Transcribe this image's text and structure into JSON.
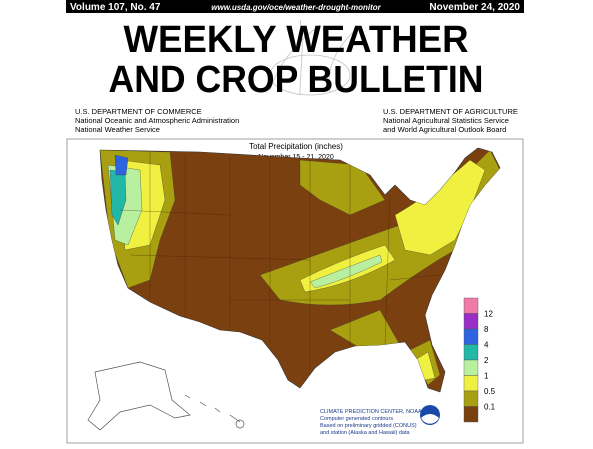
{
  "header": {
    "volume": "Volume 107, No. 47",
    "url": "www.usda.gov/oce/weather-drought-monitor",
    "date": "November 24, 2020"
  },
  "title": {
    "line1": "WEEKLY WEATHER",
    "line2": "AND CROP BULLETIN"
  },
  "agencies": {
    "left": [
      "U.S. DEPARTMENT OF COMMERCE",
      "National Oceanic and Atmospheric Administration",
      "National Weather Service"
    ],
    "right": [
      "U.S. DEPARTMENT OF AGRICULTURE",
      "National Agricultural Statistics Service",
      "and World Agricultural Outlook Board"
    ]
  },
  "map": {
    "title": "Total Precipitation (inches)",
    "subtitle": "November 15 - 21, 2020",
    "legend": {
      "colors": [
        "#f07aa8",
        "#9a2fc8",
        "#2f64e0",
        "#22b8a8",
        "#b8f0a0",
        "#f0f040",
        "#a8a010",
        "#7a4010"
      ],
      "labels": [
        12,
        8,
        4,
        2,
        1,
        0.5,
        0.1
      ]
    },
    "credit": [
      "CLIMATE PREDICTION CENTER, NOAA",
      "Computer generated contours",
      "Based on preliminary gridded (CONUS)",
      "and station (Alaska and Hawaii) data"
    ]
  }
}
